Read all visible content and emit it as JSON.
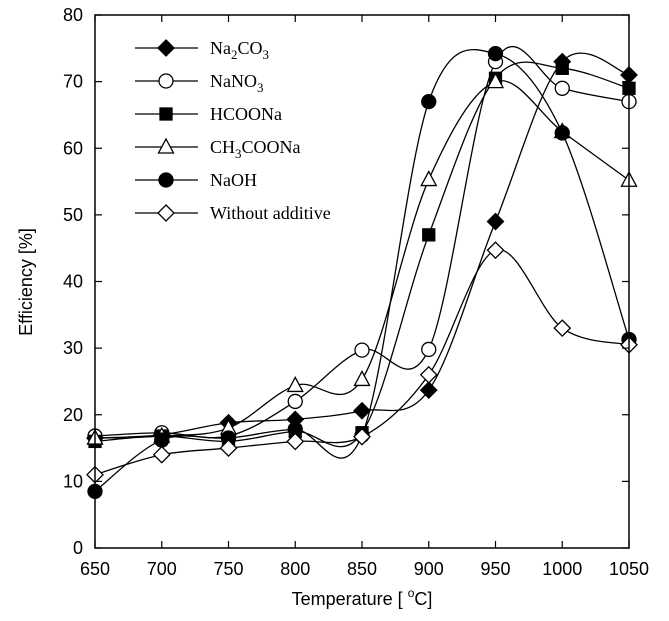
{
  "chart_data": {
    "type": "line",
    "xlabel": "Temperature [°C]",
    "ylabel": "Efficiency [%]",
    "xlim": [
      650,
      1050
    ],
    "ylim": [
      0,
      80
    ],
    "x_ticks": [
      650,
      700,
      750,
      800,
      850,
      900,
      950,
      1000,
      1050
    ],
    "y_ticks": [
      0,
      10,
      20,
      30,
      40,
      50,
      60,
      70,
      80
    ],
    "grid": false,
    "legend_position": "top-left",
    "x": [
      650,
      700,
      750,
      800,
      850,
      900,
      950,
      1000,
      1050
    ],
    "series": [
      {
        "name": "Na2CO3",
        "label_parts": [
          [
            "Na",
            ""
          ],
          [
            "2",
            "sub"
          ],
          [
            "CO",
            ""
          ],
          [
            "3",
            "sub"
          ]
        ],
        "marker": "diamond-filled",
        "values": [
          16.5,
          17.0,
          18.8,
          19.3,
          20.6,
          23.7,
          49.0,
          73.0,
          71.0
        ]
      },
      {
        "name": "NaNO3",
        "label_parts": [
          [
            "NaNO",
            ""
          ],
          [
            "3",
            "sub"
          ]
        ],
        "marker": "circle-open",
        "values": [
          16.8,
          17.3,
          16.8,
          22.0,
          29.7,
          29.8,
          73.0,
          69.0,
          67.0
        ]
      },
      {
        "name": "HCOONa",
        "label_parts": [
          [
            "HCOONa",
            ""
          ]
        ],
        "marker": "square-filled",
        "values": [
          16.0,
          16.8,
          16.0,
          17.5,
          17.3,
          47.0,
          70.5,
          72.0,
          69.0
        ]
      },
      {
        "name": "CH3COONa",
        "label_parts": [
          [
            "CH",
            ""
          ],
          [
            "3",
            "sub"
          ],
          [
            "COONa",
            ""
          ]
        ],
        "marker": "triangle-open",
        "values": [
          16.5,
          16.8,
          18.0,
          24.4,
          25.3,
          55.3,
          70.0,
          62.5,
          55.2
        ]
      },
      {
        "name": "NaOH",
        "label_parts": [
          [
            "NaOH",
            ""
          ]
        ],
        "marker": "circle-filled",
        "values": [
          8.5,
          16.2,
          16.5,
          17.8,
          16.9,
          67.0,
          74.2,
          62.3,
          31.3
        ]
      },
      {
        "name": "Without additive",
        "label_parts": [
          [
            " Without additive",
            ""
          ]
        ],
        "marker": "diamond-open",
        "values": [
          11.0,
          14.0,
          15.0,
          16.0,
          16.7,
          26.0,
          44.7,
          33.0,
          30.5
        ]
      }
    ]
  }
}
